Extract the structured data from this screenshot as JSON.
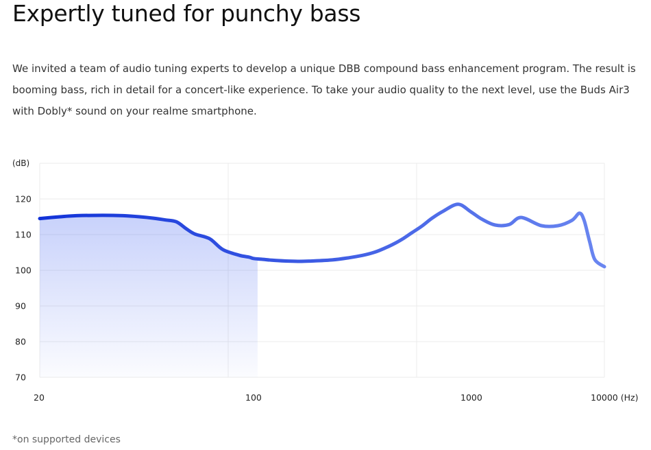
{
  "heading": "Expertly tuned for punchy bass",
  "description": "We invited a team of audio tuning experts to develop a unique DBB compound bass enhancement program. The result is booming bass, rich in detail for a concert-like experience. To take your audio quality to the next level, use the Buds Air3 with Dobly* sound on your realme smartphone.",
  "footnote": "*on supported devices",
  "colors": {
    "curve_start": "#1233d8",
    "curve_end": "#6a86f0",
    "fill": "#3a5cf0",
    "grid": "#ebebeb"
  },
  "chart_data": {
    "type": "line",
    "title": "",
    "ylabel": "(dB)",
    "xlabel": "",
    "x_scale": "log",
    "x_tick_labels": [
      "20",
      "100",
      "1000",
      "10000 (Hz)"
    ],
    "x_ticks": [
      20,
      100,
      1000,
      10000
    ],
    "y_ticks": [
      70,
      80,
      90,
      100,
      110,
      120
    ],
    "ylim": [
      70,
      130
    ],
    "xlim": [
      20,
      10000
    ],
    "grid": true,
    "shaded_until_hz": 220,
    "series": [
      {
        "x": [
          20,
          25,
          30,
          40,
          50,
          60,
          70,
          80,
          90,
          100,
          110,
          130,
          150,
          180,
          200,
          210,
          230,
          260,
          300,
          350,
          400,
          500,
          600,
          700,
          800,
          900,
          1000,
          1100,
          1200,
          1350,
          1500,
          1700,
          2000,
          2300,
          2600,
          3000,
          3500,
          4000,
          5000,
          6000,
          7000,
          7600,
          8000,
          8500,
          9000,
          10000
        ],
        "y": [
          114.5,
          115.0,
          115.3,
          115.4,
          115.3,
          115.0,
          114.6,
          114.1,
          113.6,
          111.7,
          110.2,
          108.8,
          105.8,
          104.2,
          103.7,
          103.3,
          103.1,
          102.8,
          102.6,
          102.5,
          102.6,
          102.9,
          103.5,
          104.2,
          105.1,
          106.3,
          107.6,
          109.0,
          110.5,
          112.5,
          114.6,
          116.6,
          118.5,
          116.4,
          114.3,
          112.7,
          112.8,
          114.8,
          112.5,
          112.5,
          114.0,
          116.0,
          114.0,
          108.0,
          103.0,
          101.0
        ]
      }
    ]
  }
}
